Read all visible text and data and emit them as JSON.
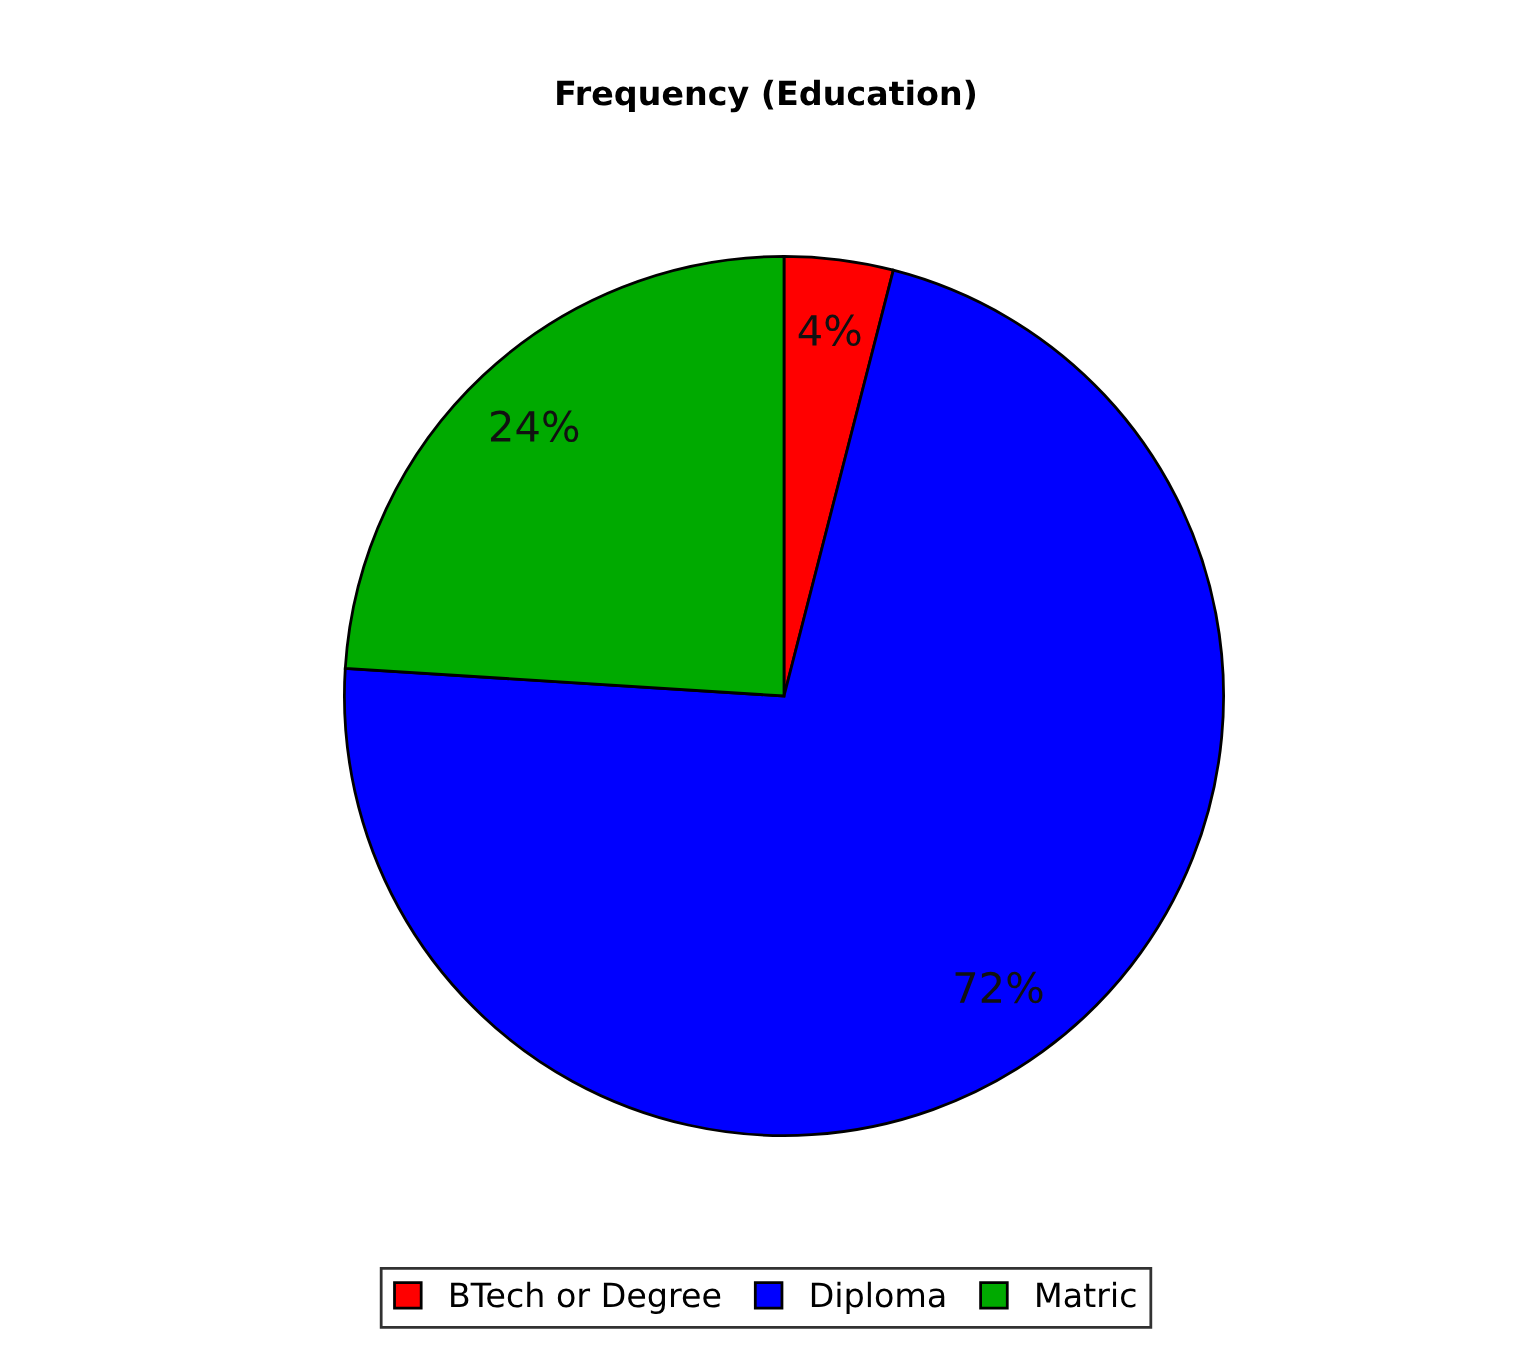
{
  "chart_data": {
    "type": "pie",
    "title": "Frequency (Education)",
    "categories": [
      "BTech or Degree",
      "Diploma",
      "Matric"
    ],
    "values": [
      4,
      72,
      24
    ],
    "colors": [
      "#ff0000",
      "#0000ff",
      "#00aa00"
    ],
    "value_labels": [
      "4%",
      "72%",
      "24%"
    ],
    "legend": "bottom"
  }
}
